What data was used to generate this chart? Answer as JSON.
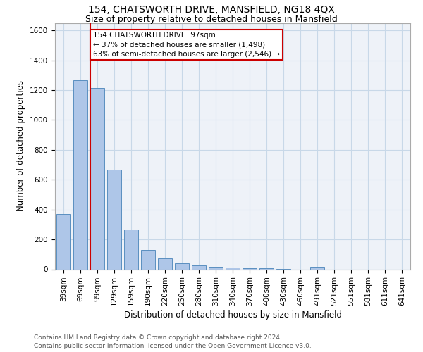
{
  "title_line1": "154, CHATSWORTH DRIVE, MANSFIELD, NG18 4QX",
  "title_line2": "Size of property relative to detached houses in Mansfield",
  "xlabel": "Distribution of detached houses by size in Mansfield",
  "ylabel": "Number of detached properties",
  "annotation_line1": "154 CHATSWORTH DRIVE: 97sqm",
  "annotation_line2": "← 37% of detached houses are smaller (1,498)",
  "annotation_line3": "63% of semi-detached houses are larger (2,546) →",
  "footer_line1": "Contains HM Land Registry data © Crown copyright and database right 2024.",
  "footer_line2": "Contains public sector information licensed under the Open Government Licence v3.0.",
  "bar_labels": [
    "39sqm",
    "69sqm",
    "99sqm",
    "129sqm",
    "159sqm",
    "190sqm",
    "220sqm",
    "250sqm",
    "280sqm",
    "310sqm",
    "340sqm",
    "370sqm",
    "400sqm",
    "430sqm",
    "460sqm",
    "491sqm",
    "521sqm",
    "551sqm",
    "581sqm",
    "611sqm",
    "641sqm"
  ],
  "bar_values": [
    370,
    1265,
    1215,
    665,
    265,
    130,
    75,
    42,
    28,
    18,
    10,
    8,
    6,
    4,
    0,
    18,
    0,
    0,
    0,
    0,
    0
  ],
  "bar_color": "#aec6e8",
  "bar_edge_color": "#5a8fc0",
  "vline_color": "#cc0000",
  "annotation_box_edge_color": "#cc0000",
  "ylim": [
    0,
    1650
  ],
  "yticks": [
    0,
    200,
    400,
    600,
    800,
    1000,
    1200,
    1400,
    1600
  ],
  "grid_color": "#c8d8e8",
  "bg_color": "#eef2f8",
  "title_fontsize": 10,
  "subtitle_fontsize": 9,
  "axis_label_fontsize": 8.5,
  "tick_fontsize": 7.5,
  "footer_fontsize": 6.5
}
